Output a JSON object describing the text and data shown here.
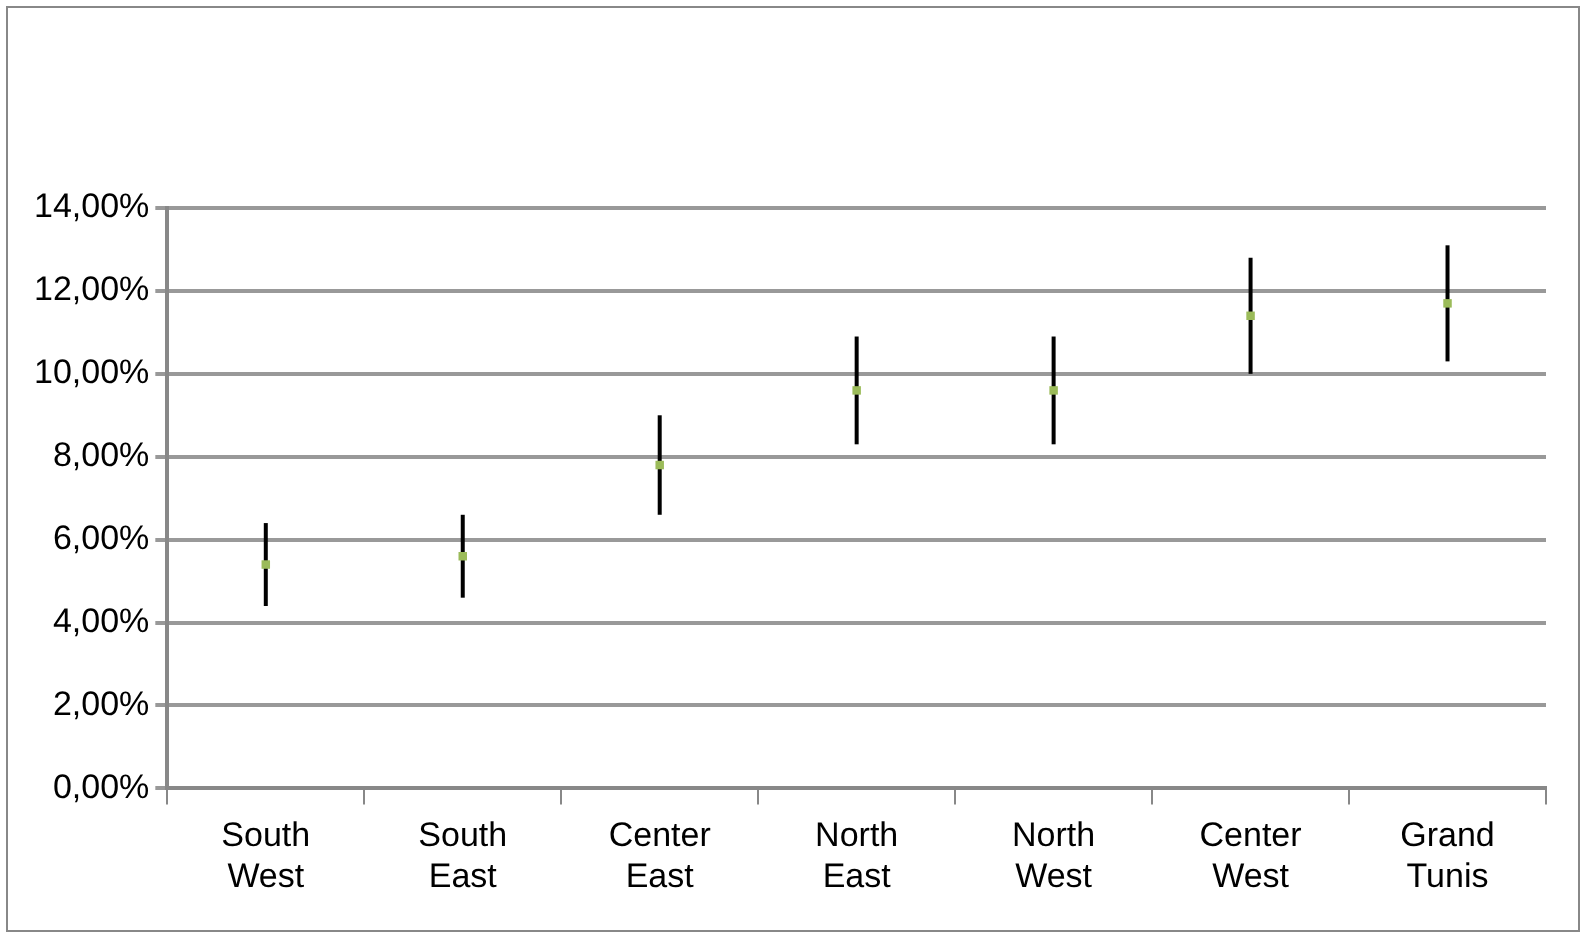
{
  "chart_data": {
    "type": "scatter",
    "categories": [
      "South West",
      "South East",
      "Center East",
      "North East",
      "North West",
      "Center West",
      "Grand Tunis"
    ],
    "series": [
      {
        "color": "#9bbb59",
        "values": [
          5.4,
          5.6,
          7.8,
          9.6,
          9.6,
          11.4,
          11.7
        ],
        "errors": [
          [
            4.4,
            6.4
          ],
          [
            4.6,
            6.6
          ],
          [
            6.6,
            9.0
          ],
          [
            8.3,
            10.9
          ],
          [
            8.3,
            10.9
          ],
          [
            10.0,
            12.8
          ],
          [
            10.3,
            13.1
          ]
        ]
      }
    ],
    "ylim": [
      0,
      14
    ],
    "yticks": [
      {
        "value": 0,
        "label": "0,00%"
      },
      {
        "value": 2,
        "label": "2,00%"
      },
      {
        "value": 4,
        "label": "4,00%"
      },
      {
        "value": 6,
        "label": "6,00%"
      },
      {
        "value": 8,
        "label": "8,00%"
      },
      {
        "value": 10,
        "label": "10,00%"
      },
      {
        "value": 12,
        "label": "12,00%"
      },
      {
        "value": 14,
        "label": "14,00%"
      }
    ],
    "grid": "y",
    "legend": false,
    "marker": "square"
  }
}
